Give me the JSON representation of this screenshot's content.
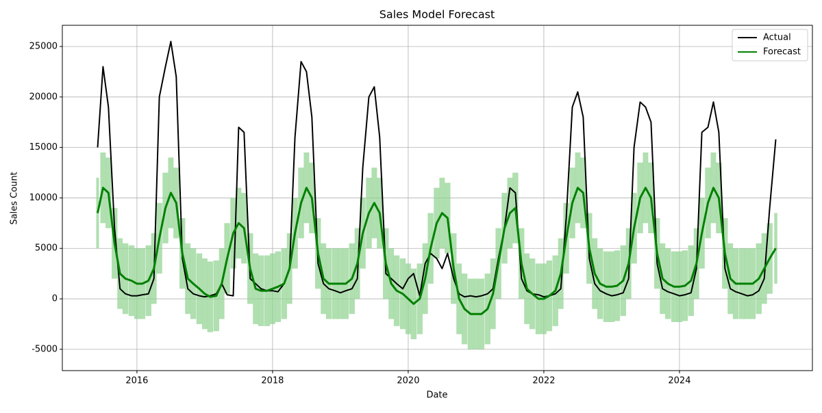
{
  "chart_data": {
    "type": "line",
    "title": "Sales Model Forecast",
    "x_label": "Date",
    "y_label": "Sales Count",
    "x": [
      2015.42,
      2015.5,
      2015.58,
      2015.67,
      2015.75,
      2015.83,
      2015.92,
      2016.0,
      2016.08,
      2016.17,
      2016.25,
      2016.33,
      2016.42,
      2016.5,
      2016.58,
      2016.67,
      2016.75,
      2016.83,
      2016.92,
      2017.0,
      2017.08,
      2017.17,
      2017.25,
      2017.33,
      2017.42,
      2017.5,
      2017.58,
      2017.67,
      2017.75,
      2017.83,
      2017.92,
      2018.0,
      2018.08,
      2018.17,
      2018.25,
      2018.33,
      2018.42,
      2018.5,
      2018.58,
      2018.67,
      2018.75,
      2018.83,
      2018.92,
      2019.0,
      2019.08,
      2019.17,
      2019.25,
      2019.33,
      2019.42,
      2019.5,
      2019.58,
      2019.67,
      2019.75,
      2019.83,
      2019.92,
      2020.0,
      2020.08,
      2020.17,
      2020.25,
      2020.33,
      2020.42,
      2020.5,
      2020.58,
      2020.67,
      2020.75,
      2020.83,
      2020.92,
      2021.0,
      2021.08,
      2021.17,
      2021.25,
      2021.33,
      2021.42,
      2021.5,
      2021.58,
      2021.67,
      2021.75,
      2021.83,
      2021.92,
      2022.0,
      2022.08,
      2022.17,
      2022.25,
      2022.33,
      2022.42,
      2022.5,
      2022.58,
      2022.67,
      2022.75,
      2022.83,
      2022.92,
      2023.0,
      2023.08,
      2023.17,
      2023.25,
      2023.33,
      2023.42,
      2023.5,
      2023.58,
      2023.67,
      2023.75,
      2023.83,
      2023.92,
      2024.0,
      2024.08,
      2024.17,
      2024.25,
      2024.33,
      2024.42,
      2024.5,
      2024.58,
      2024.67,
      2024.75,
      2024.83,
      2024.92,
      2025.0,
      2025.08,
      2025.17,
      2025.25,
      2025.33,
      2025.42
    ],
    "series": [
      {
        "name": "Actual",
        "color": "#000000",
        "values": [
          15000,
          23000,
          19000,
          7000,
          1000,
          500,
          300,
          300,
          400,
          500,
          2000,
          20000,
          23000,
          25500,
          22000,
          4000,
          1000,
          500,
          300,
          200,
          300,
          500,
          1500,
          400,
          300,
          17000,
          16500,
          2000,
          1500,
          1000,
          800,
          800,
          700,
          1500,
          3000,
          16000,
          23500,
          22500,
          18000,
          3500,
          1500,
          1000,
          800,
          600,
          800,
          1000,
          2000,
          13000,
          20000,
          21000,
          16000,
          2500,
          2000,
          1500,
          1000,
          2000,
          2500,
          300,
          3500,
          4500,
          4000,
          3000,
          4500,
          2000,
          500,
          200,
          300,
          200,
          300,
          500,
          1000,
          4000,
          7000,
          11000,
          10500,
          2000,
          800,
          500,
          400,
          200,
          300,
          500,
          1000,
          8000,
          19000,
          20500,
          18000,
          4000,
          1500,
          800,
          500,
          300,
          400,
          600,
          2000,
          15000,
          19500,
          19000,
          17500,
          3500,
          1000,
          700,
          500,
          300,
          400,
          600,
          3000,
          16500,
          17000,
          19500,
          16500,
          3000,
          1000,
          700,
          500,
          300,
          400,
          800,
          2000,
          9000,
          15800
        ]
      },
      {
        "name": "Forecast",
        "color": "#008000",
        "values": [
          8500,
          11000,
          10500,
          5500,
          2500,
          2000,
          1800,
          1500,
          1500,
          1800,
          3000,
          6000,
          9000,
          10500,
          9500,
          4500,
          2000,
          1500,
          1000,
          500,
          200,
          300,
          1500,
          4000,
          6500,
          7500,
          7000,
          3000,
          1000,
          800,
          800,
          1000,
          1200,
          1500,
          3000,
          6500,
          9500,
          11000,
          10000,
          4500,
          2000,
          1500,
          1500,
          1500,
          1500,
          2000,
          3500,
          6500,
          8500,
          9500,
          8500,
          3500,
          1500,
          800,
          500,
          0,
          -500,
          0,
          2000,
          5000,
          7500,
          8500,
          8000,
          3000,
          0,
          -1000,
          -1500,
          -1500,
          -1500,
          -1000,
          500,
          3500,
          7000,
          8500,
          9000,
          3500,
          1000,
          500,
          0,
          0,
          300,
          800,
          2500,
          6000,
          9500,
          11000,
          10500,
          5000,
          2500,
          1500,
          1200,
          1200,
          1300,
          1800,
          3500,
          7000,
          10000,
          11000,
          10000,
          4500,
          2000,
          1500,
          1200,
          1200,
          1300,
          1800,
          3500,
          6500,
          9500,
          11000,
          10000,
          4500,
          2000,
          1500,
          1500,
          1500,
          1500,
          2000,
          3000,
          4000,
          5000
        ]
      }
    ],
    "interval": {
      "color": "#8fd18f",
      "upper": [
        12000,
        14500,
        14000,
        9000,
        6000,
        5500,
        5300,
        5000,
        5000,
        5300,
        6500,
        9500,
        12500,
        14000,
        13000,
        8000,
        5500,
        5000,
        4500,
        4000,
        3700,
        3800,
        5000,
        7500,
        10000,
        11000,
        10500,
        6500,
        4500,
        4300,
        4300,
        4500,
        4700,
        5000,
        6500,
        10000,
        13000,
        14500,
        13500,
        8000,
        5500,
        5000,
        5000,
        5000,
        5000,
        5500,
        7000,
        10000,
        12000,
        13000,
        12000,
        7000,
        5000,
        4300,
        4000,
        3500,
        3000,
        3500,
        5500,
        8500,
        11000,
        12000,
        11500,
        6500,
        3500,
        2500,
        2000,
        2000,
        2000,
        2500,
        4000,
        7000,
        10500,
        12000,
        12500,
        7000,
        4500,
        4000,
        3500,
        3500,
        3800,
        4300,
        6000,
        9500,
        13000,
        14500,
        14000,
        8500,
        6000,
        5000,
        4700,
        4700,
        4800,
        5300,
        7000,
        10500,
        13500,
        14500,
        13500,
        8000,
        5500,
        5000,
        4700,
        4700,
        4800,
        5300,
        7000,
        10000,
        13000,
        14500,
        13500,
        8000,
        5500,
        5000,
        5000,
        5000,
        5000,
        5500,
        6500,
        7500,
        8500
      ],
      "lower": [
        5000,
        7500,
        7000,
        2000,
        -1000,
        -1500,
        -1700,
        -2000,
        -2000,
        -1700,
        -500,
        2500,
        5500,
        7000,
        6000,
        1000,
        -1500,
        -2000,
        -2500,
        -3000,
        -3300,
        -3200,
        -2000,
        500,
        3000,
        4000,
        3500,
        -500,
        -2500,
        -2700,
        -2700,
        -2500,
        -2300,
        -2000,
        -500,
        3000,
        6000,
        7500,
        6500,
        1000,
        -1500,
        -2000,
        -2000,
        -2000,
        -2000,
        -1500,
        0,
        3000,
        5000,
        6000,
        5000,
        0,
        -2000,
        -2700,
        -3000,
        -3500,
        -4000,
        -3500,
        -1500,
        1500,
        4000,
        5000,
        4500,
        -500,
        -3500,
        -4500,
        -5000,
        -5000,
        -5000,
        -4500,
        -3000,
        0,
        3500,
        5000,
        5500,
        0,
        -2500,
        -3000,
        -3500,
        -3500,
        -3200,
        -2700,
        -1000,
        2500,
        6000,
        7500,
        7000,
        1500,
        -1000,
        -2000,
        -2300,
        -2300,
        -2200,
        -1700,
        0,
        3500,
        6500,
        7500,
        6500,
        1000,
        -1500,
        -2000,
        -2300,
        -2300,
        -2200,
        -1700,
        0,
        3000,
        6000,
        7500,
        6500,
        1000,
        -1500,
        -2000,
        -2000,
        -2000,
        -2000,
        -1500,
        -500,
        500,
        1500
      ]
    },
    "xlim": [
      2014.9,
      2025.96
    ],
    "xticks": [
      2016,
      2018,
      2020,
      2022,
      2024
    ],
    "ylim": [
      -7110,
      27100
    ],
    "yticks": [
      -5000,
      0,
      5000,
      10000,
      15000,
      20000,
      25000
    ],
    "grid": true,
    "legend": "upper right"
  }
}
